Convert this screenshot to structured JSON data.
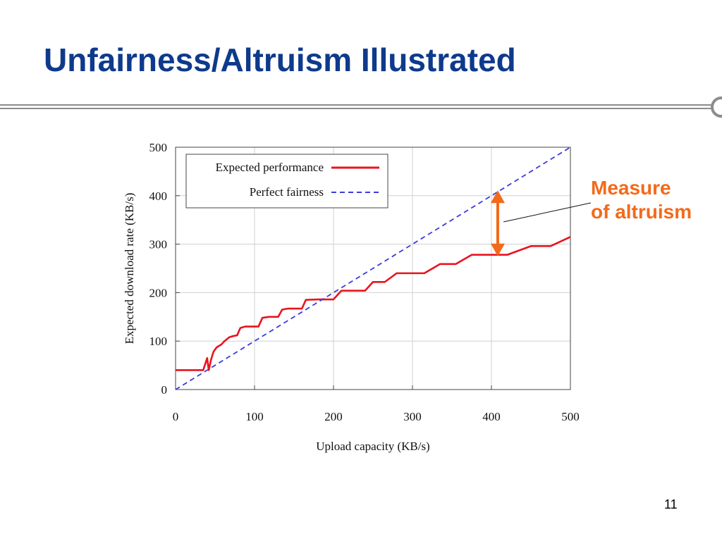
{
  "slide": {
    "title": "Unfairness/Altruism Illustrated",
    "page_number": "11",
    "title_color": "#0e3a8c"
  },
  "annotation": {
    "line1": "Measure",
    "line2": "of altruism",
    "color": "#f26a1b"
  },
  "chart_data": {
    "type": "line",
    "xlabel": "Upload capacity (KB/s)",
    "ylabel": "Expected download rate (KB/s)",
    "xlim": [
      0,
      500
    ],
    "ylim": [
      0,
      500
    ],
    "xticks": [
      0,
      100,
      200,
      300,
      400,
      500
    ],
    "yticks": [
      0,
      100,
      200,
      300,
      400,
      500
    ],
    "grid": true,
    "legend_position": "top-left",
    "series": [
      {
        "name": "Expected performance",
        "color": "#e8141e",
        "style": "solid",
        "x": [
          0,
          35,
          40,
          42,
          45,
          48,
          52,
          58,
          62,
          68,
          72,
          78,
          82,
          88,
          95,
          105,
          110,
          118,
          130,
          135,
          142,
          160,
          165,
          180,
          200,
          210,
          240,
          250,
          265,
          280,
          315,
          335,
          355,
          375,
          405,
          420,
          450,
          475,
          500
        ],
        "y": [
          40,
          40,
          65,
          40,
          62,
          78,
          87,
          93,
          100,
          108,
          110,
          112,
          127,
          130,
          130,
          130,
          148,
          150,
          150,
          165,
          167,
          167,
          185,
          186,
          186,
          204,
          204,
          222,
          222,
          240,
          240,
          259,
          259,
          278,
          278,
          278,
          296,
          296,
          315
        ]
      },
      {
        "name": "Perfect fairness",
        "color": "#3b3bdc",
        "style": "dashed",
        "x": [
          0,
          500
        ],
        "y": [
          0,
          500
        ]
      }
    ],
    "altruism_marker": {
      "x": 408,
      "y_from": 278,
      "y_to": 408,
      "color": "#f26a1b"
    }
  }
}
